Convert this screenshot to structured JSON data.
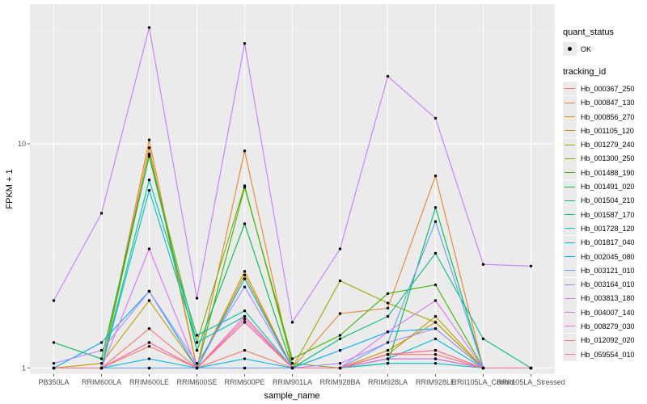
{
  "chart_data": {
    "type": "line",
    "xlabel": "sample_name",
    "ylabel": "FPKM + 1",
    "y_scale": "log10",
    "ylim": [
      0.94,
      42
    ],
    "y_ticks": [
      1,
      10
    ],
    "y_tick_labels": [
      "1",
      "10"
    ],
    "grid": true,
    "legend_position": "right",
    "categories": [
      "PB350LA",
      "RRIM600LA",
      "RRIM600LE",
      "RRIM600SE",
      "RRIM600PE",
      "RRIM901LA",
      "RRIM928BA",
      "RRIM928LA",
      "RRIM928LE",
      "RRII105LA_Control",
      "RRII105LA_Stressed"
    ],
    "legend_quant": {
      "title": "quant_status",
      "entries": [
        "OK"
      ]
    },
    "legend_tracking": {
      "title": "tracking_id"
    },
    "series": [
      {
        "name": "Hb_000367_250",
        "color": "#F8766D",
        "values": [
          1.0,
          1.0,
          1.5,
          1.0,
          1.2,
          1.0,
          1.0,
          1.15,
          1.2,
          1.0,
          1.0
        ]
      },
      {
        "name": "Hb_000847_130",
        "color": "#EA8331",
        "values": [
          1.0,
          1.0,
          10.4,
          1.0,
          9.3,
          1.0,
          1.75,
          1.85,
          7.2,
          1.0,
          1.0
        ]
      },
      {
        "name": "Hb_000856_270",
        "color": "#D89000",
        "values": [
          1.0,
          1.0,
          9.6,
          1.0,
          2.7,
          1.0,
          1.0,
          1.2,
          1.6,
          1.0,
          1.0
        ]
      },
      {
        "name": "Hb_001105_120",
        "color": "#C09B00",
        "values": [
          1.0,
          1.05,
          2.0,
          1.0,
          2.6,
          1.0,
          1.0,
          1.15,
          1.7,
          1.0,
          1.0
        ]
      },
      {
        "name": "Hb_001279_240",
        "color": "#A3A500",
        "values": [
          1.0,
          1.0,
          1.0,
          1.0,
          1.0,
          1.0,
          2.45,
          1.95,
          1.6,
          1.0,
          1.0
        ]
      },
      {
        "name": "Hb_001300_250",
        "color": "#7CAE00",
        "values": [
          1.0,
          1.0,
          9.0,
          1.3,
          6.5,
          1.05,
          1.0,
          1.1,
          1.1,
          1.0,
          1.0
        ]
      },
      {
        "name": "Hb_001488_190",
        "color": "#39B600",
        "values": [
          1.0,
          1.0,
          1.0,
          1.0,
          6.4,
          1.1,
          1.4,
          2.15,
          2.35,
          1.0,
          1.0
        ]
      },
      {
        "name": "Hb_001491_020",
        "color": "#00BB4E",
        "values": [
          1.3,
          1.1,
          8.8,
          1.2,
          4.4,
          1.0,
          1.0,
          1.05,
          5.2,
          1.0,
          1.0
        ]
      },
      {
        "name": "Hb_001504_210",
        "color": "#00BF7D",
        "values": [
          1.0,
          1.0,
          1.0,
          1.0,
          1.0,
          1.0,
          1.35,
          1.7,
          3.25,
          1.35,
          1.0
        ]
      },
      {
        "name": "Hb_001587_170",
        "color": "#00C1A3",
        "values": [
          1.0,
          1.0,
          6.9,
          1.4,
          1.8,
          1.0,
          1.0,
          1.1,
          1.1,
          1.0,
          1.0
        ]
      },
      {
        "name": "Hb_001728_120",
        "color": "#00BFC4",
        "values": [
          1.0,
          1.0,
          6.2,
          1.3,
          1.7,
          1.0,
          1.0,
          1.05,
          1.05,
          1.0,
          1.0
        ]
      },
      {
        "name": "Hb_001817_040",
        "color": "#00B9E3",
        "values": [
          1.0,
          1.0,
          1.1,
          1.0,
          1.1,
          1.0,
          1.0,
          1.1,
          1.35,
          1.0,
          1.0
        ]
      },
      {
        "name": "Hb_002045_080",
        "color": "#00ADFA",
        "values": [
          1.0,
          1.3,
          2.2,
          1.0,
          2.5,
          1.0,
          1.2,
          1.45,
          1.5,
          1.0,
          1.0
        ]
      },
      {
        "name": "Hb_003121_010",
        "color": "#619CFF",
        "values": [
          1.0,
          1.0,
          1.0,
          1.0,
          1.0,
          1.0,
          1.0,
          1.3,
          4.5,
          1.0,
          1.0
        ]
      },
      {
        "name": "Hb_003164_010",
        "color": "#AE87FF",
        "values": [
          1.05,
          1.2,
          2.2,
          1.05,
          2.3,
          1.0,
          1.05,
          1.3,
          1.5,
          1.0,
          1.0
        ]
      },
      {
        "name": "Hb_003813_180",
        "color": "#C77CFF",
        "values": [
          2.0,
          4.9,
          33,
          2.05,
          28,
          1.6,
          3.4,
          20,
          13,
          2.9,
          2.85
        ]
      },
      {
        "name": "Hb_004007_140",
        "color": "#DB72FB",
        "values": [
          1.0,
          1.0,
          3.4,
          1.0,
          1.6,
          1.0,
          1.0,
          1.45,
          2.0,
          1.0,
          1.0
        ]
      },
      {
        "name": "Hb_008279_030",
        "color": "#ED68ED",
        "values": [
          1.0,
          1.0,
          1.3,
          1.0,
          1.65,
          1.0,
          1.0,
          1.1,
          1.1,
          1.0,
          1.0
        ]
      },
      {
        "name": "Hb_012092_020",
        "color": "#F8766D",
        "values": [
          1.0,
          1.0,
          1.25,
          1.0,
          1.6,
          1.0,
          1.0,
          1.15,
          1.15,
          1.0,
          1.0
        ]
      },
      {
        "name": "Hb_059554_010",
        "color": "#FF6C91",
        "values": [
          1.0,
          1.0,
          1.3,
          1.0,
          1.7,
          1.0,
          1.0,
          1.15,
          1.2,
          1.0,
          1.0
        ]
      }
    ]
  }
}
